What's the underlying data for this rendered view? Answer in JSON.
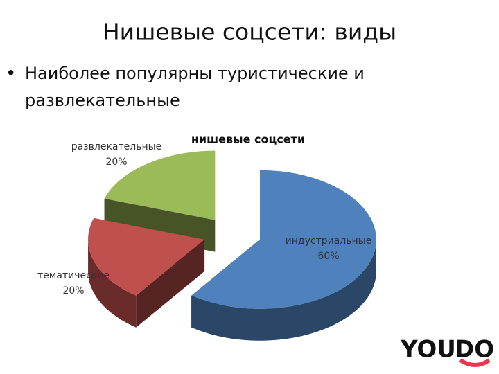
{
  "slide": {
    "title": "Нишевые соцсети: виды",
    "bullet": [
      "Наиболее популярны туристические и",
      "развлекательные"
    ],
    "logo": [
      "YOU",
      "DO"
    ]
  },
  "chart_data": {
    "type": "pie",
    "title": "нишевые соцсети",
    "categories": [
      "индустриальные",
      "тематические",
      "развлекательные"
    ],
    "values": [
      60,
      20,
      20
    ],
    "value_labels": [
      "60%",
      "20%",
      "20%"
    ],
    "colors": [
      "#4f81bd",
      "#c0504d",
      "#9bbb59"
    ]
  }
}
